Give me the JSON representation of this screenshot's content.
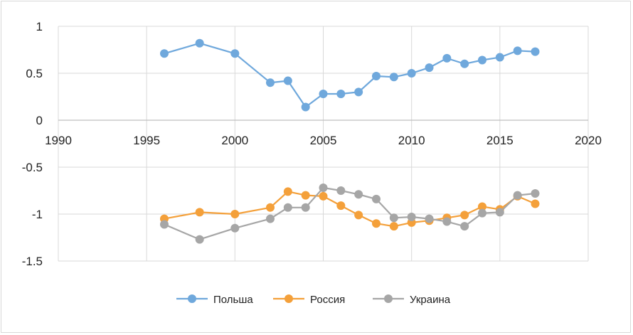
{
  "chart_data": {
    "type": "line",
    "title": "",
    "xlabel": "",
    "ylabel": "",
    "xlim": [
      1990,
      2020
    ],
    "ylim": [
      -1.5,
      1
    ],
    "x_ticks": [
      1990,
      1995,
      2000,
      2005,
      2010,
      2015,
      2020
    ],
    "y_ticks": [
      1,
      0.5,
      0,
      -0.5,
      -1,
      -1.5
    ],
    "grid": true,
    "legend_position": "bottom",
    "series": [
      {
        "name": "Польша",
        "color": "#6fa8dc",
        "x": [
          1996,
          1998,
          2000,
          2002,
          2003,
          2004,
          2005,
          2006,
          2007,
          2008,
          2009,
          2010,
          2011,
          2012,
          2013,
          2014,
          2015,
          2016,
          2017
        ],
        "y": [
          0.71,
          0.82,
          0.71,
          0.4,
          0.42,
          0.14,
          0.28,
          0.28,
          0.3,
          0.47,
          0.46,
          0.5,
          0.56,
          0.66,
          0.6,
          0.64,
          0.67,
          0.74,
          0.73
        ]
      },
      {
        "name": "Россия",
        "color": "#f4a03a",
        "x": [
          1996,
          1998,
          2000,
          2002,
          2003,
          2004,
          2005,
          2006,
          2007,
          2008,
          2009,
          2010,
          2011,
          2012,
          2013,
          2014,
          2015,
          2016,
          2017
        ],
        "y": [
          -1.05,
          -0.98,
          -1.0,
          -0.93,
          -0.76,
          -0.8,
          -0.81,
          -0.91,
          -1.01,
          -1.1,
          -1.13,
          -1.09,
          -1.07,
          -1.04,
          -1.01,
          -0.92,
          -0.95,
          -0.81,
          -0.89
        ]
      },
      {
        "name": "Украина",
        "color": "#a6a6a6",
        "x": [
          1996,
          1998,
          2000,
          2002,
          2003,
          2004,
          2005,
          2006,
          2007,
          2008,
          2009,
          2010,
          2011,
          2012,
          2013,
          2014,
          2015,
          2016,
          2017
        ],
        "y": [
          -1.11,
          -1.27,
          -1.15,
          -1.05,
          -0.93,
          -0.93,
          -0.72,
          -0.75,
          -0.79,
          -0.84,
          -1.04,
          -1.03,
          -1.05,
          -1.08,
          -1.13,
          -0.99,
          -0.98,
          -0.8,
          -0.78
        ]
      }
    ]
  }
}
